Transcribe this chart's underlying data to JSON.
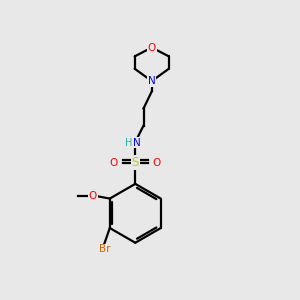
{
  "bg_color": "#e8e8e8",
  "bond_color": "#000000",
  "colors": {
    "O": "#ff0000",
    "N": "#0000ff",
    "S": "#cccc00",
    "Br": "#cc6600",
    "H": "#20b2aa",
    "C": "#000000"
  },
  "lw": 1.6
}
